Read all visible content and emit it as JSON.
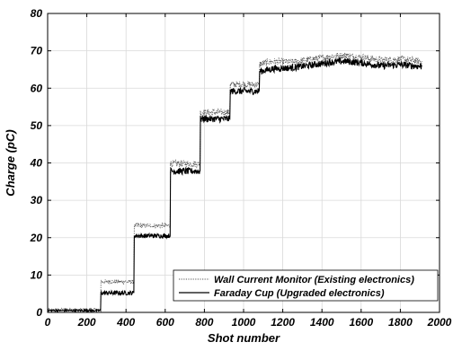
{
  "chart_data": {
    "type": "line",
    "title": "",
    "xlabel": "Shot number",
    "ylabel": "Charge (pC)",
    "xlim": [
      0,
      2000
    ],
    "ylim": [
      0,
      80
    ],
    "x_ticks": [
      0,
      200,
      400,
      600,
      800,
      1000,
      1200,
      1400,
      1600,
      1800,
      2000
    ],
    "y_ticks": [
      0,
      10,
      20,
      30,
      40,
      50,
      60,
      70,
      80
    ],
    "grid": true,
    "legend_position": "bottom-right",
    "series": [
      {
        "name": "Wall Current Monitor (Existing electronics)",
        "style": "dotted",
        "color": "#555555",
        "x": [
          0,
          270,
          272,
          440,
          442,
          625,
          627,
          778,
          780,
          930,
          932,
          1080,
          1082,
          1150,
          1250,
          1350,
          1450,
          1520,
          1600,
          1700,
          1800,
          1910
        ],
        "y": [
          0.8,
          0.8,
          8.2,
          8.2,
          23.2,
          23.2,
          39.8,
          39.8,
          53.5,
          53.5,
          61.0,
          61.0,
          66.5,
          67.2,
          67.0,
          67.8,
          68.5,
          68.8,
          68.3,
          67.5,
          67.8,
          67.2
        ]
      },
      {
        "name": "Faraday Cup (Upgraded electronics)",
        "style": "solid",
        "color": "#000000",
        "x": [
          0,
          270,
          272,
          440,
          442,
          625,
          627,
          778,
          780,
          930,
          932,
          1080,
          1082,
          1150,
          1250,
          1350,
          1450,
          1520,
          1600,
          1700,
          1800,
          1910
        ],
        "y": [
          0.5,
          0.5,
          5.2,
          5.2,
          20.5,
          20.5,
          37.8,
          37.8,
          51.8,
          51.8,
          59.2,
          59.2,
          64.5,
          65.2,
          65.5,
          66.2,
          67.0,
          67.2,
          66.8,
          66.0,
          66.3,
          65.8
        ]
      }
    ]
  }
}
